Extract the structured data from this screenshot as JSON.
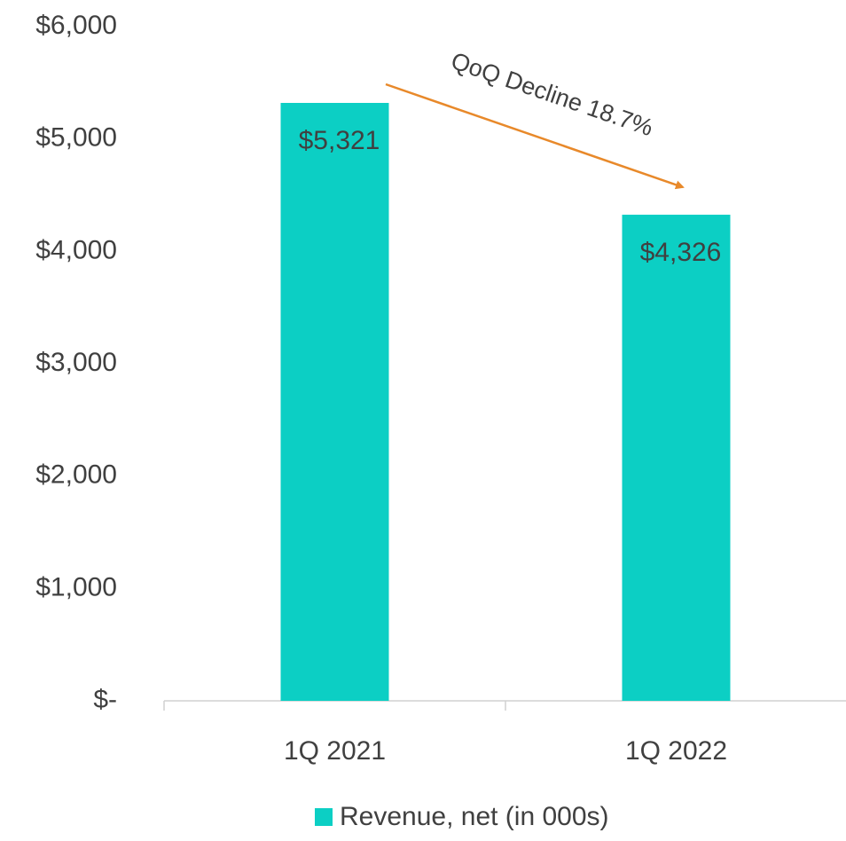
{
  "chart_data": {
    "type": "bar",
    "categories": [
      "1Q 2021",
      "1Q 2022"
    ],
    "series": [
      {
        "name": "Revenue, net (in 000s)",
        "color": "#0ccfc4",
        "values": [
          5321,
          4326
        ],
        "value_labels": [
          "$5,321",
          "$4,326"
        ]
      }
    ],
    "ylim": [
      0,
      6000
    ],
    "yticks": [
      {
        "value": 0,
        "label": "$-"
      },
      {
        "value": 1000,
        "label": "$1,000"
      },
      {
        "value": 2000,
        "label": "$2,000"
      },
      {
        "value": 3000,
        "label": "$3,000"
      },
      {
        "value": 4000,
        "label": "$4,000"
      },
      {
        "value": 5000,
        "label": "$5,000"
      },
      {
        "value": 6000,
        "label": "$6,000"
      }
    ],
    "grid": false,
    "legend": "bottom",
    "annotations": [
      {
        "text": "QoQ Decline 18.7%"
      }
    ]
  }
}
